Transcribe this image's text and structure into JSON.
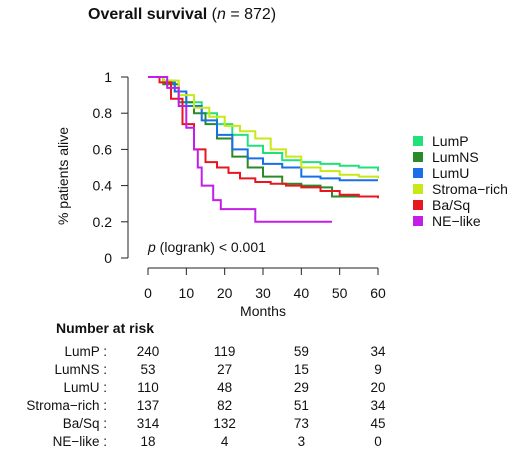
{
  "title": {
    "bold": "Overall survival",
    "open": "(",
    "n": "n",
    "rest": " = 872)"
  },
  "chart_data": {
    "type": "line",
    "subtype": "kaplan-meier",
    "xlabel": "Months",
    "ylabel": "% patients alive",
    "xlim": [
      0,
      60
    ],
    "ylim": [
      0,
      1
    ],
    "xticks": [
      "0",
      "10",
      "20",
      "30",
      "40",
      "50",
      "60"
    ],
    "yticks": [
      "0",
      "0.2",
      "0.4",
      "0.6",
      "0.8",
      "1"
    ],
    "annotation_p": "p",
    "annotation_rest": " (logrank) < 0.001",
    "legend_position": "right",
    "series": [
      {
        "name": "LumP",
        "color": "#22e07a",
        "x": [
          0,
          4,
          7,
          10,
          14,
          18,
          22,
          26,
          30,
          35,
          40,
          45,
          50,
          55,
          60
        ],
        "y": [
          1,
          0.98,
          0.92,
          0.86,
          0.8,
          0.74,
          0.68,
          0.62,
          0.58,
          0.54,
          0.53,
          0.52,
          0.51,
          0.5,
          0.48
        ]
      },
      {
        "name": "LumNS",
        "color": "#2a8a2a",
        "x": [
          0,
          4,
          8,
          12,
          15,
          18,
          22,
          26,
          30,
          35,
          40,
          45,
          48,
          52,
          56,
          60
        ],
        "y": [
          1,
          0.96,
          0.86,
          0.8,
          0.74,
          0.66,
          0.56,
          0.5,
          0.45,
          0.41,
          0.4,
          0.39,
          0.34,
          0.34,
          0.34,
          0.34
        ]
      },
      {
        "name": "LumU",
        "color": "#1a6fe8",
        "x": [
          0,
          4,
          7,
          10,
          14,
          18,
          22,
          26,
          30,
          35,
          40,
          45,
          50,
          55,
          60
        ],
        "y": [
          1,
          0.97,
          0.92,
          0.84,
          0.76,
          0.68,
          0.6,
          0.55,
          0.52,
          0.5,
          0.45,
          0.44,
          0.43,
          0.43,
          0.43
        ]
      },
      {
        "name": "Stroma−rich",
        "color": "#c8e817",
        "x": [
          0,
          4,
          8,
          12,
          16,
          20,
          24,
          28,
          32,
          36,
          40,
          45,
          50,
          55,
          60
        ],
        "y": [
          1,
          0.98,
          0.9,
          0.83,
          0.78,
          0.73,
          0.7,
          0.66,
          0.6,
          0.56,
          0.5,
          0.48,
          0.46,
          0.45,
          0.44
        ]
      },
      {
        "name": "Ba/Sq",
        "color": "#e8161f",
        "x": [
          0,
          3,
          6,
          9,
          12,
          15,
          18,
          21,
          24,
          28,
          32,
          36,
          40,
          45,
          50,
          55,
          60
        ],
        "y": [
          1,
          0.97,
          0.88,
          0.74,
          0.6,
          0.53,
          0.5,
          0.47,
          0.44,
          0.42,
          0.41,
          0.4,
          0.39,
          0.37,
          0.35,
          0.34,
          0.33
        ]
      },
      {
        "name": "NE−like",
        "color": "#c21ee8",
        "x": [
          0,
          5,
          8,
          10,
          12,
          13,
          14,
          17,
          19,
          26,
          28,
          40,
          48
        ],
        "y": [
          1,
          0.94,
          0.84,
          0.72,
          0.6,
          0.5,
          0.4,
          0.32,
          0.27,
          0.27,
          0.2,
          0.2,
          0.2
        ]
      }
    ]
  },
  "risk_table": {
    "title": "Number at risk",
    "times": [
      0,
      20,
      40,
      60
    ],
    "rows": [
      {
        "label": "LumP :",
        "values": [
          "240",
          "119",
          "59",
          "34"
        ]
      },
      {
        "label": "LumNS :",
        "values": [
          "53",
          "27",
          "15",
          "9"
        ]
      },
      {
        "label": "LumU :",
        "values": [
          "110",
          "48",
          "29",
          "20"
        ]
      },
      {
        "label": "Stroma−rich :",
        "values": [
          "137",
          "82",
          "51",
          "34"
        ]
      },
      {
        "label": "Ba/Sq :",
        "values": [
          "314",
          "132",
          "73",
          "45"
        ]
      },
      {
        "label": "NE−like :",
        "values": [
          "18",
          "4",
          "3",
          "0"
        ]
      }
    ]
  }
}
